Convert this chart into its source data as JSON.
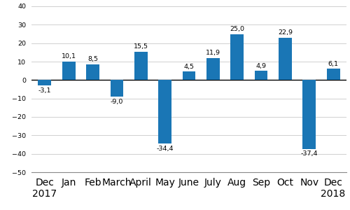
{
  "categories": [
    "Dec\n2017",
    "Jan",
    "Feb",
    "March",
    "April",
    "May",
    "June",
    "July",
    "Aug",
    "Sep",
    "Oct",
    "Nov",
    "Dec\n2018"
  ],
  "values": [
    -3.1,
    10.1,
    8.5,
    -9.0,
    15.5,
    -34.4,
    4.5,
    11.9,
    25.0,
    4.9,
    22.9,
    -37.4,
    6.1
  ],
  "labels": [
    "-3,1",
    "10,1",
    "8,5",
    "-9,0",
    "15,5",
    "-34,4",
    "4,5",
    "11,9",
    "25,0",
    "4,9",
    "22,9",
    "-37,4",
    "6,1"
  ],
  "bar_color": "#1a76b5",
  "ylim": [
    -50,
    40
  ],
  "yticks": [
    -50,
    -40,
    -30,
    -20,
    -10,
    0,
    10,
    20,
    30,
    40
  ],
  "grid_color": "#d0d0d0",
  "background_color": "#ffffff",
  "label_fontsize": 6.8,
  "tick_fontsize": 6.8,
  "bar_width": 0.55
}
